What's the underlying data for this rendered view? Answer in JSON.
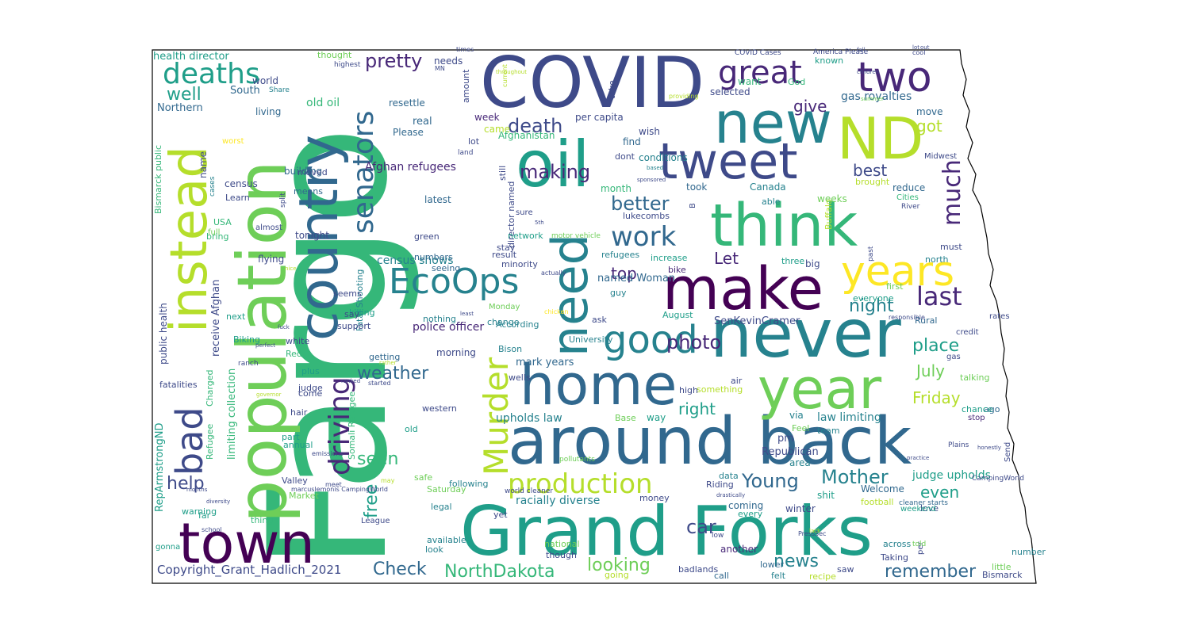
{
  "background": "#ffffff",
  "outline_color": "#000000",
  "copyright": "Copyright_Grant_Hadlich_2021",
  "palette": {
    "purple": "#440154",
    "indigo": "#482878",
    "slate": "#3e4a89",
    "blue": "#31688e",
    "teal": "#26828e",
    "sea": "#1f9e89",
    "green": "#35b779",
    "lime": "#6ece58",
    "yellowgreen": "#b5de2b",
    "yellow": "#fde725"
  },
  "words": [
    {
      "text": "Fargo",
      "color": "green",
      "vertical": true
    },
    {
      "text": "Grand Forks",
      "color": "sea"
    },
    {
      "text": "population",
      "color": "lime",
      "vertical": true
    },
    {
      "text": "COVID",
      "color": "slate"
    },
    {
      "text": "country",
      "color": "blue",
      "vertical": true
    },
    {
      "text": "oil",
      "color": "sea"
    },
    {
      "text": "never",
      "color": "teal"
    },
    {
      "text": "around back",
      "color": "blue"
    },
    {
      "text": "home",
      "color": "blue"
    },
    {
      "text": "make",
      "color": "purple"
    },
    {
      "text": "think",
      "color": "green"
    },
    {
      "text": "year",
      "color": "lime"
    },
    {
      "text": "town",
      "color": "purple"
    },
    {
      "text": "new",
      "color": "teal"
    },
    {
      "text": "need",
      "color": "teal",
      "vertical": true
    },
    {
      "text": "tweet",
      "color": "slate"
    },
    {
      "text": "ND",
      "color": "yellowgreen"
    },
    {
      "text": "instead",
      "color": "yellowgreen",
      "vertical": true
    },
    {
      "text": "bad",
      "color": "slate",
      "vertical": true
    },
    {
      "text": "two",
      "color": "indigo"
    },
    {
      "text": "EcoOps",
      "color": "teal"
    },
    {
      "text": "Murder",
      "color": "yellowgreen",
      "vertical": true
    },
    {
      "text": "years",
      "color": "yellow"
    },
    {
      "text": "good",
      "color": "teal"
    },
    {
      "text": "production",
      "color": "yellowgreen"
    },
    {
      "text": "senators",
      "color": "blue",
      "vertical": true
    },
    {
      "text": "driving",
      "color": "indigo",
      "vertical": true
    },
    {
      "text": "great",
      "color": "indigo"
    },
    {
      "text": "deaths",
      "color": "sea"
    },
    {
      "text": "work",
      "color": "blue"
    },
    {
      "text": "much",
      "color": "indigo",
      "vertical": true
    },
    {
      "text": "last",
      "color": "indigo"
    },
    {
      "text": "pretty",
      "color": "indigo"
    },
    {
      "text": "death",
      "color": "slate"
    },
    {
      "text": "making",
      "color": "indigo"
    },
    {
      "text": "better",
      "color": "blue"
    },
    {
      "text": "photo",
      "color": "indigo"
    },
    {
      "text": "Young",
      "color": "blue"
    },
    {
      "text": "Mother",
      "color": "teal"
    },
    {
      "text": "Check",
      "color": "blue"
    },
    {
      "text": "NorthDakota",
      "color": "green"
    },
    {
      "text": "looking",
      "color": "lime"
    },
    {
      "text": "car",
      "color": "slate"
    },
    {
      "text": "news",
      "color": "teal"
    },
    {
      "text": "remember",
      "color": "blue"
    },
    {
      "text": "place",
      "color": "sea"
    },
    {
      "text": "night",
      "color": "teal"
    },
    {
      "text": "weather",
      "color": "blue"
    },
    {
      "text": "help",
      "color": "slate"
    },
    {
      "text": "seen",
      "color": "green"
    },
    {
      "text": "right",
      "color": "sea"
    },
    {
      "text": "July",
      "color": "lime"
    },
    {
      "text": "Friday",
      "color": "yellowgreen"
    },
    {
      "text": "even",
      "color": "sea"
    },
    {
      "text": "best",
      "color": "slate"
    },
    {
      "text": "got",
      "color": "yellowgreen"
    },
    {
      "text": "give",
      "color": "indigo"
    },
    {
      "text": "well",
      "color": "sea"
    },
    {
      "text": "top",
      "color": "indigo"
    },
    {
      "text": "Let",
      "color": "indigo"
    },
    {
      "text": "free",
      "color": "sea",
      "vertical": true
    },
    {
      "text": "upholds law",
      "color": "teal"
    },
    {
      "text": "police officer",
      "color": "indigo"
    },
    {
      "text": "Afghan refugees",
      "color": "indigo"
    },
    {
      "text": "census shows",
      "color": "teal"
    },
    {
      "text": "gas royalties",
      "color": "blue"
    },
    {
      "text": "law limiting",
      "color": "teal"
    },
    {
      "text": "judge upholds",
      "color": "sea"
    },
    {
      "text": "racially diverse",
      "color": "teal"
    },
    {
      "text": "health director",
      "color": "sea"
    },
    {
      "text": "old oil",
      "color": "green"
    },
    {
      "text": "mark years",
      "color": "blue"
    },
    {
      "text": "Republican",
      "color": "slate"
    },
    {
      "text": "SenKevinCramer",
      "color": "slate"
    },
    {
      "text": "named Woman",
      "color": "blue"
    },
    {
      "text": "public health",
      "color": "slate",
      "vertical": true
    },
    {
      "text": "receive Afghan",
      "color": "slate",
      "vertical": true
    },
    {
      "text": "limiting collection",
      "color": "green",
      "vertical": true
    },
    {
      "text": "Bismarck public",
      "color": "green",
      "vertical": true
    },
    {
      "text": "RepArmstrongND",
      "color": "sea",
      "vertical": true
    },
    {
      "text": "Somali Refugee",
      "color": "green",
      "vertical": true
    },
    {
      "text": "Fatal Shooting",
      "color": "teal",
      "vertical": true
    },
    {
      "text": "Refugee",
      "color": "green",
      "vertical": true
    },
    {
      "text": "Charged",
      "color": "green",
      "vertical": true
    },
    {
      "text": "director named",
      "color": "slate",
      "vertical": true
    },
    {
      "text": "per capita",
      "color": "slate"
    },
    {
      "text": "motor vehicle",
      "color": "lime"
    },
    {
      "text": "COVID Cases",
      "color": "slate"
    },
    {
      "text": "cleaner starts",
      "color": "blue"
    },
    {
      "text": "world cleaner",
      "color": "slate"
    },
    {
      "text": "Northern",
      "color": "blue"
    },
    {
      "text": "South",
      "color": "blue"
    },
    {
      "text": "world",
      "color": "slate"
    },
    {
      "text": "thought",
      "color": "lime"
    },
    {
      "text": "needs",
      "color": "slate"
    },
    {
      "text": "resettle",
      "color": "blue"
    },
    {
      "text": "real",
      "color": "blue"
    },
    {
      "text": "Please",
      "color": "blue"
    },
    {
      "text": "living",
      "color": "blue"
    },
    {
      "text": "building",
      "color": "blue"
    },
    {
      "text": "moved",
      "color": "slate"
    },
    {
      "text": "means",
      "color": "blue"
    },
    {
      "text": "latest",
      "color": "blue"
    },
    {
      "text": "week",
      "color": "indigo"
    },
    {
      "text": "came",
      "color": "yellowgreen"
    },
    {
      "text": "lot",
      "color": "slate"
    },
    {
      "text": "Afghanistan",
      "color": "green"
    },
    {
      "text": "selected",
      "color": "slate"
    },
    {
      "text": "want",
      "color": "green"
    },
    {
      "text": "known",
      "color": "sea"
    },
    {
      "text": "God",
      "color": "green"
    },
    {
      "text": "move",
      "color": "blue"
    },
    {
      "text": "wish",
      "color": "slate"
    },
    {
      "text": "conditions",
      "color": "teal"
    },
    {
      "text": "find",
      "color": "blue"
    },
    {
      "text": "dont",
      "color": "slate"
    },
    {
      "text": "month",
      "color": "green"
    },
    {
      "text": "took",
      "color": "blue"
    },
    {
      "text": "Canada",
      "color": "teal"
    },
    {
      "text": "reduce",
      "color": "blue"
    },
    {
      "text": "Cities",
      "color": "green"
    },
    {
      "text": "weeks",
      "color": "lime"
    },
    {
      "text": "brought",
      "color": "yellowgreen"
    },
    {
      "text": "able",
      "color": "teal"
    },
    {
      "text": "north",
      "color": "teal"
    },
    {
      "text": "must",
      "color": "slate"
    },
    {
      "text": "three",
      "color": "sea"
    },
    {
      "text": "big",
      "color": "slate"
    },
    {
      "text": "first",
      "color": "lime"
    },
    {
      "text": "everyone",
      "color": "sea"
    },
    {
      "text": "Rural",
      "color": "blue"
    },
    {
      "text": "credit",
      "color": "slate"
    },
    {
      "text": "talking",
      "color": "lime"
    },
    {
      "text": "ago",
      "color": "blue"
    },
    {
      "text": "stop",
      "color": "indigo"
    },
    {
      "text": "chance",
      "color": "sea"
    },
    {
      "text": "via",
      "color": "teal"
    },
    {
      "text": "Feel",
      "color": "lime"
    },
    {
      "text": "team",
      "color": "teal"
    },
    {
      "text": "pm",
      "color": "slate"
    },
    {
      "text": "area",
      "color": "teal"
    },
    {
      "text": "data",
      "color": "teal"
    },
    {
      "text": "Riding",
      "color": "slate"
    },
    {
      "text": "coming",
      "color": "blue"
    },
    {
      "text": "every",
      "color": "sea"
    },
    {
      "text": "winter",
      "color": "slate"
    },
    {
      "text": "shit",
      "color": "sea"
    },
    {
      "text": "Welcome",
      "color": "blue"
    },
    {
      "text": "football",
      "color": "yellowgreen"
    },
    {
      "text": "love",
      "color": "slate"
    },
    {
      "text": "across",
      "color": "teal"
    },
    {
      "text": "number",
      "color": "teal"
    },
    {
      "text": "saw",
      "color": "slate"
    },
    {
      "text": "Taking",
      "color": "slate"
    },
    {
      "text": "Bismarck",
      "color": "slate"
    },
    {
      "text": "little",
      "color": "lime"
    },
    {
      "text": "recipe",
      "color": "yellowgreen"
    },
    {
      "text": "felt",
      "color": "teal"
    },
    {
      "text": "lower",
      "color": "blue"
    },
    {
      "text": "call",
      "color": "blue"
    },
    {
      "text": "badlands",
      "color": "slate"
    },
    {
      "text": "going",
      "color": "yellowgreen"
    },
    {
      "text": "another",
      "color": "indigo"
    },
    {
      "text": "national",
      "color": "lime"
    },
    {
      "text": "though",
      "color": "slate"
    },
    {
      "text": "money",
      "color": "slate"
    },
    {
      "text": "yet",
      "color": "slate"
    },
    {
      "text": "following",
      "color": "teal"
    },
    {
      "text": "legal",
      "color": "teal"
    },
    {
      "text": "available",
      "color": "teal"
    },
    {
      "text": "look",
      "color": "teal"
    },
    {
      "text": "Saturday",
      "color": "lime"
    },
    {
      "text": "safe",
      "color": "lime"
    },
    {
      "text": "old",
      "color": "sea"
    },
    {
      "text": "western",
      "color": "slate"
    },
    {
      "text": "Base",
      "color": "lime"
    },
    {
      "text": "way",
      "color": "sea"
    },
    {
      "text": "something",
      "color": "yellowgreen"
    },
    {
      "text": "air",
      "color": "slate"
    },
    {
      "text": "high",
      "color": "slate"
    },
    {
      "text": "ask",
      "color": "slate"
    },
    {
      "text": "University",
      "color": "teal"
    },
    {
      "text": "According",
      "color": "teal"
    },
    {
      "text": "Bison",
      "color": "teal"
    },
    {
      "text": "change",
      "color": "teal"
    },
    {
      "text": "nothing",
      "color": "teal"
    },
    {
      "text": "morning",
      "color": "slate"
    },
    {
      "text": "getting",
      "color": "blue"
    },
    {
      "text": "killing",
      "color": "sea"
    },
    {
      "text": "numbers",
      "color": "blue"
    },
    {
      "text": "seeing",
      "color": "blue"
    },
    {
      "text": "result",
      "color": "slate"
    },
    {
      "text": "minority",
      "color": "slate"
    },
    {
      "text": "stay",
      "color": "slate"
    },
    {
      "text": "network",
      "color": "sea"
    },
    {
      "text": "sure",
      "color": "slate"
    },
    {
      "text": "green",
      "color": "slate"
    },
    {
      "text": "guy",
      "color": "teal"
    },
    {
      "text": "refugees",
      "color": "teal"
    },
    {
      "text": "increase",
      "color": "sea"
    },
    {
      "text": "bike",
      "color": "indigo"
    },
    {
      "text": "lukecombs",
      "color": "slate"
    },
    {
      "text": "August",
      "color": "sea"
    },
    {
      "text": "flying",
      "color": "slate"
    },
    {
      "text": "Learn",
      "color": "slate"
    },
    {
      "text": "census",
      "color": "slate"
    },
    {
      "text": "tonight",
      "color": "slate"
    },
    {
      "text": "almost",
      "color": "slate"
    },
    {
      "text": "USA",
      "color": "green"
    },
    {
      "text": "name",
      "color": "slate"
    },
    {
      "text": "full",
      "color": "lime"
    },
    {
      "text": "bring",
      "color": "green"
    },
    {
      "text": "seems",
      "color": "slate"
    },
    {
      "text": "say",
      "color": "slate"
    },
    {
      "text": "next",
      "color": "sea"
    },
    {
      "text": "support",
      "color": "slate"
    },
    {
      "text": "Biking",
      "color": "sea"
    },
    {
      "text": "white",
      "color": "slate"
    },
    {
      "text": "Red",
      "color": "green"
    },
    {
      "text": "plus",
      "color": "sea"
    },
    {
      "text": "judge",
      "color": "slate"
    },
    {
      "text": "come",
      "color": "slate"
    },
    {
      "text": "hair",
      "color": "slate"
    },
    {
      "text": "part",
      "color": "sea"
    },
    {
      "text": "annual",
      "color": "sea"
    },
    {
      "text": "Valley",
      "color": "slate"
    },
    {
      "text": "Market",
      "color": "lime"
    },
    {
      "text": "warning",
      "color": "sea"
    },
    {
      "text": "far",
      "color": "sea"
    },
    {
      "text": "thing",
      "color": "green"
    },
    {
      "text": "fatalities",
      "color": "slate"
    },
    {
      "text": "gonna",
      "color": "sea"
    },
    {
      "text": "League",
      "color": "slate"
    },
    {
      "text": "rates",
      "color": "slate"
    },
    {
      "text": "gas",
      "color": "slate"
    },
    {
      "text": "Send",
      "color": "slate"
    },
    {
      "text": "River",
      "color": "slate"
    },
    {
      "text": "Plains",
      "color": "slate"
    },
    {
      "text": "wells",
      "color": "slate"
    },
    {
      "text": "B",
      "color": "slate"
    },
    {
      "text": "Buffalo",
      "color": "yellowgreen"
    },
    {
      "text": "amount",
      "color": "slate"
    },
    {
      "text": "take",
      "color": "slate"
    },
    {
      "text": "still",
      "color": "slate"
    },
    {
      "text": "worst",
      "color": "yellow"
    },
    {
      "text": "cases",
      "color": "teal"
    },
    {
      "text": "per",
      "color": "slate"
    },
    {
      "text": "pollutants",
      "color": "lime"
    },
    {
      "text": "Midwest",
      "color": "slate"
    },
    {
      "text": "ranch",
      "color": "slate"
    },
    {
      "text": "split",
      "color": "slate"
    },
    {
      "text": "past",
      "color": "slate"
    },
    {
      "text": "Monday",
      "color": "lime"
    },
    {
      "text": "weekend",
      "color": "sea"
    },
    {
      "text": "PressSec",
      "color": "slate"
    },
    {
      "text": "low",
      "color": "slate"
    },
    {
      "text": "told",
      "color": "lime"
    },
    {
      "text": "CampingWorld",
      "color": "slate"
    },
    {
      "text": "Share",
      "color": "teal"
    },
    {
      "text": "current",
      "color": "yellowgreen"
    },
    {
      "text": "MN",
      "color": "slate"
    },
    {
      "text": "America Please",
      "color": "slate"
    },
    {
      "text": "cool",
      "color": "slate"
    },
    {
      "text": "times",
      "color": "slate"
    },
    {
      "text": "highest",
      "color": "slate"
    },
    {
      "text": "providing",
      "color": "yellowgreen"
    },
    {
      "text": "based",
      "color": "teal"
    },
    {
      "text": "land",
      "color": "slate"
    },
    {
      "text": "sponsored",
      "color": "slate"
    },
    {
      "text": "actually",
      "color": "slate"
    },
    {
      "text": "responsible",
      "color": "slate"
    },
    {
      "text": "summer",
      "color": "lime"
    },
    {
      "text": "chicken",
      "color": "yellow"
    },
    {
      "text": "started",
      "color": "slate"
    },
    {
      "text": "may",
      "color": "yellowgreen"
    },
    {
      "text": "marcuslemonis CampingWorld",
      "color": "slate"
    },
    {
      "text": "emissions",
      "color": "slate"
    },
    {
      "text": "diversity",
      "color": "slate"
    },
    {
      "text": "school",
      "color": "slate"
    },
    {
      "text": "perfect",
      "color": "slate"
    },
    {
      "text": "practice",
      "color": "slate"
    },
    {
      "text": "honestly",
      "color": "slate"
    },
    {
      "text": "governor",
      "color": "yellowgreen"
    },
    {
      "text": "months",
      "color": "slate"
    },
    {
      "text": "fuck",
      "color": "slate"
    },
    {
      "text": "nice",
      "color": "yellowgreen"
    },
    {
      "text": "meet",
      "color": "slate"
    },
    {
      "text": "least",
      "color": "slate"
    },
    {
      "text": "5th",
      "color": "slate"
    },
    {
      "text": "children",
      "color": "slate"
    },
    {
      "text": "throughout",
      "color": "yellowgreen"
    },
    {
      "text": "drastically",
      "color": "slate"
    },
    {
      "text": "lack",
      "color": "yellowgreen"
    },
    {
      "text": "ranked",
      "color": "slate"
    },
    {
      "text": "rather",
      "color": "yellowgreen"
    },
    {
      "text": "fall",
      "color": "slate"
    },
    {
      "text": "out",
      "color": "slate"
    },
    {
      "text": "lot",
      "color": "slate"
    },
    {
      "text": "highest",
      "color": "slate"
    },
    {
      "text": "sum",
      "color": "slate"
    }
  ]
}
